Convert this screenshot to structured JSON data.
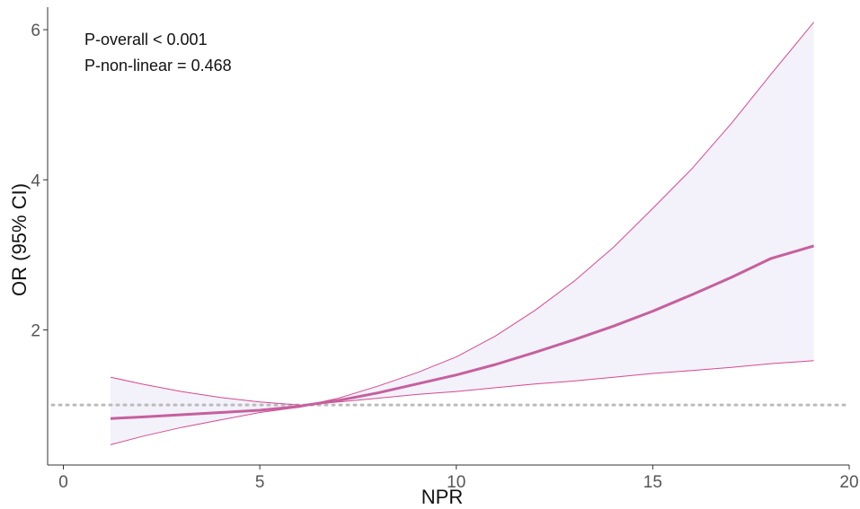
{
  "chart_data": {
    "type": "line",
    "title": "",
    "xlabel": "NPR",
    "ylabel": "OR (95% CI)",
    "xlim": [
      -0.4,
      20
    ],
    "ylim": [
      0.2,
      6.3
    ],
    "xticks": [
      0,
      5,
      10,
      15,
      20
    ],
    "xtick_labels": [
      "0",
      "5",
      "10",
      "15",
      "20"
    ],
    "yticks": [
      2,
      4,
      6
    ],
    "ytick_labels": [
      "2",
      "4",
      "6"
    ],
    "grid": false,
    "reference_line": {
      "y": 1,
      "style": "dotted",
      "color": "#bbbbbb"
    },
    "annotations": [
      "P-overall < 0.001",
      "P-non-linear = 0.468"
    ],
    "colors": {
      "line": "#c5609e",
      "band_fill": "#f3f1fa",
      "band_edge": "#d54a90",
      "axis": "#333333"
    },
    "x": [
      1.2,
      2,
      3,
      4,
      5,
      6,
      6.2,
      7,
      8,
      9,
      10,
      11,
      12,
      13,
      14,
      15,
      16,
      17,
      18,
      19.1
    ],
    "series": [
      {
        "role": "estimate",
        "values": [
          0.82,
          0.84,
          0.87,
          0.9,
          0.93,
          0.98,
          1.0,
          1.06,
          1.16,
          1.28,
          1.4,
          1.54,
          1.7,
          1.87,
          2.05,
          2.25,
          2.47,
          2.7,
          2.95,
          3.12
        ]
      },
      {
        "role": "upper",
        "values": [
          1.37,
          1.28,
          1.18,
          1.1,
          1.04,
          1.0,
          1.0,
          1.09,
          1.25,
          1.43,
          1.64,
          1.92,
          2.26,
          2.65,
          3.1,
          3.62,
          4.15,
          4.75,
          5.4,
          6.1
        ]
      },
      {
        "role": "lower",
        "values": [
          0.47,
          0.58,
          0.7,
          0.8,
          0.9,
          0.97,
          1.0,
          1.04,
          1.09,
          1.14,
          1.18,
          1.23,
          1.28,
          1.32,
          1.37,
          1.42,
          1.46,
          1.5,
          1.55,
          1.59
        ]
      }
    ]
  }
}
